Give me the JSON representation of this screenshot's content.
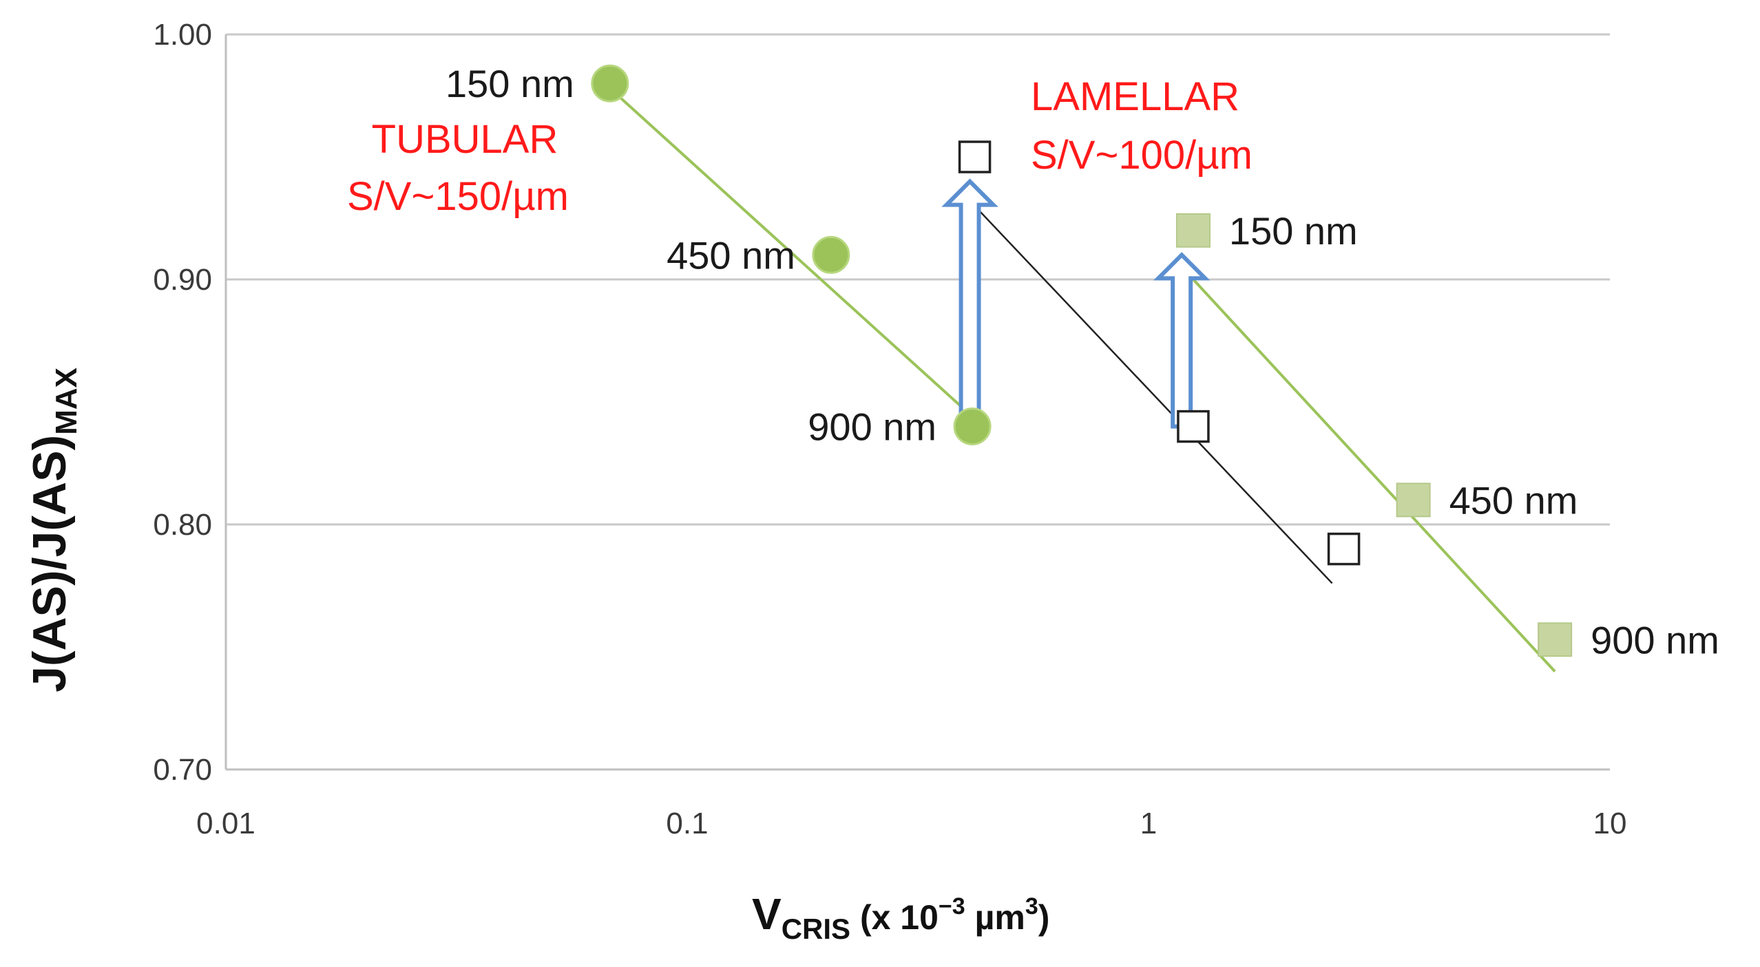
{
  "chart_data": {
    "type": "scatter",
    "title": "",
    "xlabel": {
      "main": "V",
      "sub": "CRIS",
      "rest": " (x 10",
      "sup1": "−3",
      "mid": " µm",
      "sup2": "3",
      "end": ")"
    },
    "ylabel": {
      "main": "J(AS)/J(AS)",
      "sub": "MAX"
    },
    "xscale": "log",
    "xlim": [
      0.01,
      10
    ],
    "ylim": [
      0.7,
      1.0
    ],
    "x_ticks": [
      0.01,
      0.1,
      1,
      10
    ],
    "x_tick_labels": [
      "0.01",
      "0.1",
      "1",
      "10"
    ],
    "y_ticks": [
      0.7,
      0.8,
      0.9,
      1.0
    ],
    "y_tick_labels": [
      "0.70",
      "0.80",
      "0.90",
      "1.00"
    ],
    "grid": "horizontal",
    "colors": {
      "green": "#9bc35a",
      "green_square": "#c7d6a1",
      "green_square_edge": "#b5c98a",
      "black": "#222222",
      "arrow": "#5b8fd1",
      "annotation": "#ff1a1a"
    },
    "series": [
      {
        "name": "tubular",
        "marker": "circle",
        "points": [
          {
            "x": 0.068,
            "y": 0.98,
            "label": "150 nm"
          },
          {
            "x": 0.205,
            "y": 0.91,
            "label": "450 nm"
          },
          {
            "x": 0.415,
            "y": 0.84,
            "label": "900 nm"
          }
        ],
        "fit": {
          "x": [
            0.068,
            0.415
          ],
          "y": [
            0.978,
            0.844
          ]
        }
      },
      {
        "name": "lamellar",
        "marker": "square-filled",
        "points": [
          {
            "x": 1.25,
            "y": 0.92,
            "label": "150 nm"
          },
          {
            "x": 3.75,
            "y": 0.81,
            "label": "450 nm"
          },
          {
            "x": 7.6,
            "y": 0.753,
            "label": "900 nm"
          }
        ],
        "fit": {
          "x": [
            1.25,
            7.6
          ],
          "y": [
            0.9,
            0.74
          ]
        }
      },
      {
        "name": "open-squares",
        "marker": "square-open",
        "points": [
          {
            "x": 0.42,
            "y": 0.95
          },
          {
            "x": 1.25,
            "y": 0.84
          },
          {
            "x": 2.65,
            "y": 0.79
          }
        ],
        "fit": {
          "x": [
            0.42,
            2.5
          ],
          "y": [
            0.93,
            0.776
          ]
        }
      }
    ],
    "arrows": [
      {
        "x": 0.41,
        "y_from": 0.84,
        "y_to": 0.94
      },
      {
        "x": 1.18,
        "y_from": 0.84,
        "y_to": 0.91
      }
    ],
    "annotations": [
      {
        "lines": [
          "TUBULAR",
          "S/V~150/µm"
        ]
      },
      {
        "lines": [
          "LAMELLAR",
          "S/V~100/µm"
        ]
      }
    ]
  }
}
